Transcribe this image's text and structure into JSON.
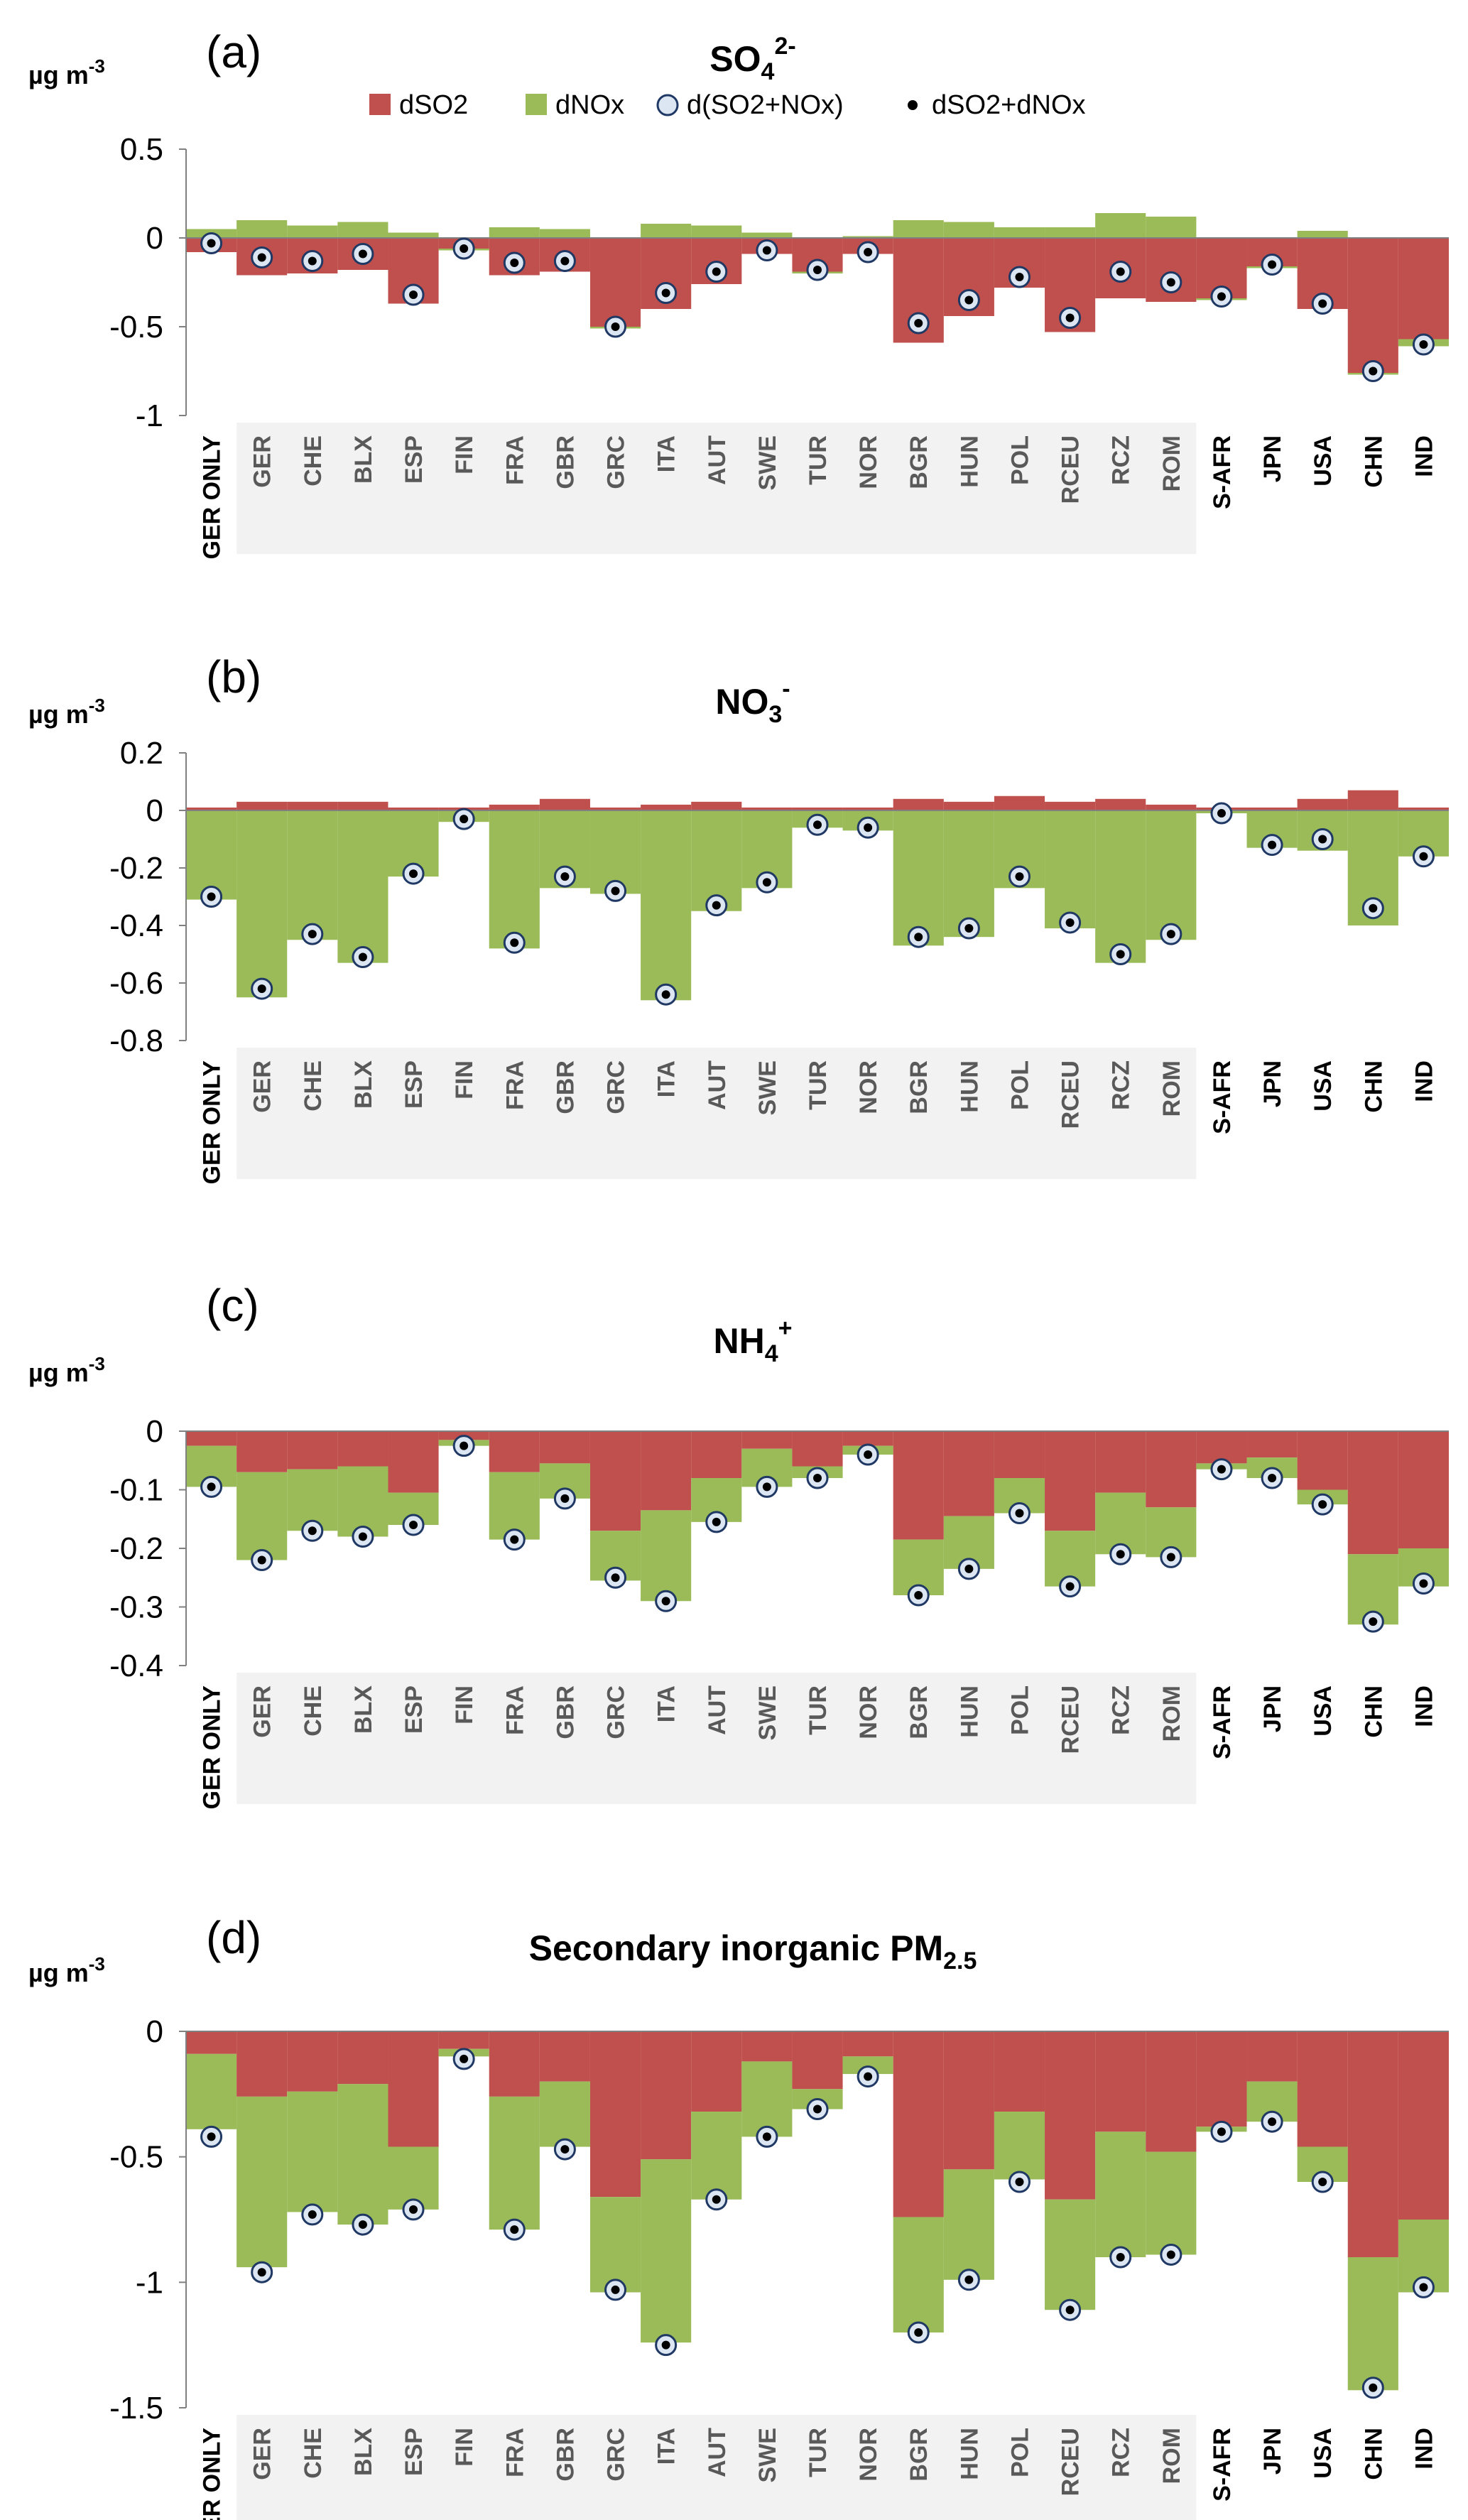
{
  "colors": {
    "dSO2": "#C0504D",
    "dNOx": "#9BBB59",
    "d_combined_fill": "#DCE6F2",
    "d_combined_stroke": "#1F3864",
    "d_sum_dot": "#000000",
    "eu_shading": "#F2F2F2",
    "axis": "#808080"
  },
  "legend": {
    "items": [
      {
        "label": "dSO2",
        "marker": "square",
        "color_key": "dSO2"
      },
      {
        "label": "dNOx",
        "marker": "square",
        "color_key": "dNOx"
      },
      {
        "label": "d(SO2+NOx)",
        "marker": "circle",
        "color_key": "d_combined_fill"
      },
      {
        "label": "dSO2+dNOx",
        "marker": "dot",
        "color_key": "d_sum_dot"
      }
    ]
  },
  "chart_data": [
    {
      "type": "bar",
      "panel": "(a)",
      "title": "SO",
      "title_sub": "4",
      "title_sup": "2-",
      "unit": "µg  m",
      "unit_sup": "-3",
      "ylim": [
        -1,
        0.5
      ],
      "yticks": [
        "0.5",
        "0",
        "-0.5",
        "-1"
      ],
      "yticks_values": [
        0.5,
        0,
        -0.5,
        -1
      ],
      "categories": [
        "GER ONLY",
        "GER",
        "CHE",
        "BLX",
        "ESP",
        "FIN",
        "FRA",
        "GBR",
        "GRC",
        "ITA",
        "AUT",
        "SWE",
        "TUR",
        "NOR",
        "BGR",
        "HUN",
        "POL",
        "RCEU",
        "RCZ",
        "ROM",
        "S-AFR",
        "JPN",
        "USA",
        "CHN",
        "IND"
      ],
      "series": [
        {
          "name": "dSO2",
          "values": [
            -0.08,
            -0.21,
            -0.2,
            -0.18,
            -0.37,
            -0.06,
            -0.21,
            -0.19,
            -0.5,
            -0.4,
            -0.26,
            -0.09,
            -0.19,
            -0.09,
            -0.59,
            -0.44,
            -0.28,
            -0.53,
            -0.34,
            -0.36,
            -0.34,
            -0.16,
            -0.4,
            -0.76,
            -0.57
          ]
        },
        {
          "name": "dNOx",
          "values": [
            0.05,
            0.1,
            0.07,
            0.09,
            0.03,
            -0.01,
            0.06,
            0.05,
            -0.01,
            0.08,
            0.07,
            0.03,
            -0.01,
            0.01,
            0.1,
            0.09,
            0.06,
            0.06,
            0.14,
            0.12,
            -0.01,
            -0.01,
            0.04,
            -0.01,
            -0.04
          ]
        },
        {
          "name": "d(SO2+NOx)",
          "values": [
            -0.03,
            -0.11,
            -0.13,
            -0.09,
            -0.32,
            -0.06,
            -0.14,
            -0.13,
            -0.5,
            -0.31,
            -0.19,
            -0.07,
            -0.18,
            -0.08,
            -0.48,
            -0.35,
            -0.22,
            -0.45,
            -0.19,
            -0.25,
            -0.33,
            -0.15,
            -0.37,
            -0.75,
            -0.6
          ]
        },
        {
          "name": "dSO2+dNOx",
          "values": [
            -0.03,
            -0.11,
            -0.13,
            -0.09,
            -0.32,
            -0.06,
            -0.14,
            -0.13,
            -0.5,
            -0.31,
            -0.19,
            -0.07,
            -0.18,
            -0.08,
            -0.48,
            -0.35,
            -0.22,
            -0.45,
            -0.19,
            -0.25,
            -0.33,
            -0.15,
            -0.37,
            -0.75,
            -0.6
          ]
        }
      ]
    },
    {
      "type": "bar",
      "panel": "(b)",
      "title": "NO",
      "title_sub": "3",
      "title_sup": "-",
      "unit": "µg  m",
      "unit_sup": "-3",
      "ylim": [
        -0.8,
        0.2
      ],
      "yticks": [
        "0.2",
        "0",
        "-0.2",
        "-0.4",
        "-0.6",
        "-0.8"
      ],
      "yticks_values": [
        0.2,
        0,
        -0.2,
        -0.4,
        -0.6,
        -0.8
      ],
      "categories": [
        "GER ONLY",
        "GER",
        "CHE",
        "BLX",
        "ESP",
        "FIN",
        "FRA",
        "GBR",
        "GRC",
        "ITA",
        "AUT",
        "SWE",
        "TUR",
        "NOR",
        "BGR",
        "HUN",
        "POL",
        "RCEU",
        "RCZ",
        "ROM",
        "S-AFR",
        "JPN",
        "USA",
        "CHN",
        "IND"
      ],
      "series": [
        {
          "name": "dSO2",
          "values": [
            0.01,
            0.03,
            0.03,
            0.03,
            0.01,
            0.01,
            0.02,
            0.04,
            0.01,
            0.02,
            0.03,
            0.01,
            0.01,
            0.01,
            0.04,
            0.03,
            0.05,
            0.03,
            0.04,
            0.02,
            0.01,
            0.01,
            0.04,
            0.07,
            0.01
          ]
        },
        {
          "name": "dNOx",
          "values": [
            -0.31,
            -0.65,
            -0.45,
            -0.53,
            -0.23,
            -0.04,
            -0.48,
            -0.27,
            -0.29,
            -0.66,
            -0.35,
            -0.27,
            -0.06,
            -0.07,
            -0.47,
            -0.44,
            -0.27,
            -0.41,
            -0.53,
            -0.45,
            -0.01,
            -0.13,
            -0.14,
            -0.4,
            -0.16
          ]
        },
        {
          "name": "d(SO2+NOx)",
          "values": [
            -0.3,
            -0.62,
            -0.43,
            -0.51,
            -0.22,
            -0.03,
            -0.46,
            -0.23,
            -0.28,
            -0.64,
            -0.33,
            -0.25,
            -0.05,
            -0.06,
            -0.44,
            -0.41,
            -0.23,
            -0.39,
            -0.5,
            -0.43,
            -0.01,
            -0.12,
            -0.1,
            -0.34,
            -0.16
          ]
        },
        {
          "name": "dSO2+dNOx",
          "values": [
            -0.3,
            -0.62,
            -0.43,
            -0.51,
            -0.22,
            -0.03,
            -0.46,
            -0.23,
            -0.28,
            -0.64,
            -0.33,
            -0.25,
            -0.05,
            -0.06,
            -0.44,
            -0.41,
            -0.23,
            -0.39,
            -0.5,
            -0.43,
            -0.01,
            -0.12,
            -0.1,
            -0.34,
            -0.16
          ]
        }
      ]
    },
    {
      "type": "bar",
      "panel": "(c)",
      "title": "NH",
      "title_sub": "4",
      "title_sup": "+",
      "unit": "µg  m",
      "unit_sup": "-3",
      "ylim": [
        -0.4,
        0
      ],
      "yticks": [
        "0",
        "-0.1",
        "-0.2",
        "-0.3",
        "-0.4"
      ],
      "yticks_values": [
        0,
        -0.1,
        -0.2,
        -0.3,
        -0.4
      ],
      "categories": [
        "GER ONLY",
        "GER",
        "CHE",
        "BLX",
        "ESP",
        "FIN",
        "FRA",
        "GBR",
        "GRC",
        "ITA",
        "AUT",
        "SWE",
        "TUR",
        "NOR",
        "BGR",
        "HUN",
        "POL",
        "RCEU",
        "RCZ",
        "ROM",
        "S-AFR",
        "JPN",
        "USA",
        "CHN",
        "IND"
      ],
      "series": [
        {
          "name": "dSO2",
          "values": [
            -0.025,
            -0.07,
            -0.065,
            -0.06,
            -0.105,
            -0.015,
            -0.07,
            -0.055,
            -0.17,
            -0.135,
            -0.08,
            -0.03,
            -0.06,
            -0.025,
            -0.185,
            -0.145,
            -0.08,
            -0.17,
            -0.105,
            -0.13,
            -0.055,
            -0.045,
            -0.1,
            -0.21,
            -0.2
          ]
        },
        {
          "name": "dNOx",
          "values": [
            -0.07,
            -0.15,
            -0.105,
            -0.12,
            -0.055,
            -0.01,
            -0.115,
            -0.06,
            -0.085,
            -0.155,
            -0.075,
            -0.065,
            -0.02,
            -0.015,
            -0.095,
            -0.09,
            -0.06,
            -0.095,
            -0.105,
            -0.085,
            -0.01,
            -0.035,
            -0.025,
            -0.12,
            -0.065
          ]
        },
        {
          "name": "d(SO2+NOx)",
          "values": [
            -0.095,
            -0.22,
            -0.17,
            -0.18,
            -0.16,
            -0.025,
            -0.185,
            -0.115,
            -0.25,
            -0.29,
            -0.155,
            -0.095,
            -0.08,
            -0.04,
            -0.28,
            -0.235,
            -0.14,
            -0.265,
            -0.21,
            -0.215,
            -0.065,
            -0.08,
            -0.125,
            -0.325,
            -0.26
          ]
        },
        {
          "name": "dSO2+dNOx",
          "values": [
            -0.095,
            -0.22,
            -0.17,
            -0.18,
            -0.16,
            -0.025,
            -0.185,
            -0.115,
            -0.25,
            -0.29,
            -0.155,
            -0.095,
            -0.08,
            -0.04,
            -0.28,
            -0.235,
            -0.14,
            -0.265,
            -0.21,
            -0.215,
            -0.065,
            -0.08,
            -0.125,
            -0.325,
            -0.26
          ]
        }
      ]
    },
    {
      "type": "bar",
      "panel": "(d)",
      "title": "Secondary inorganic PM",
      "title_sub": "2.5",
      "title_sup": "",
      "unit": "µg  m",
      "unit_sup": "-3",
      "ylim": [
        -1.5,
        0
      ],
      "yticks": [
        "0",
        "-0.5",
        "-1",
        "-1.5"
      ],
      "yticks_values": [
        0,
        -0.5,
        -1,
        -1.5
      ],
      "categories": [
        "GER ONLY",
        "GER",
        "CHE",
        "BLX",
        "ESP",
        "FIN",
        "FRA",
        "GBR",
        "GRC",
        "ITA",
        "AUT",
        "SWE",
        "TUR",
        "NOR",
        "BGR",
        "HUN",
        "POL",
        "RCEU",
        "RCZ",
        "ROM",
        "S-AFR",
        "JPN",
        "USA",
        "CHN",
        "IND"
      ],
      "series": [
        {
          "name": "dSO2",
          "values": [
            -0.09,
            -0.26,
            -0.24,
            -0.21,
            -0.46,
            -0.07,
            -0.26,
            -0.2,
            -0.66,
            -0.51,
            -0.32,
            -0.12,
            -0.23,
            -0.1,
            -0.74,
            -0.55,
            -0.32,
            -0.67,
            -0.4,
            -0.48,
            -0.38,
            -0.2,
            -0.46,
            -0.9,
            -0.75
          ]
        },
        {
          "name": "dNOx",
          "values": [
            -0.3,
            -0.68,
            -0.48,
            -0.56,
            -0.25,
            -0.03,
            -0.53,
            -0.26,
            -0.38,
            -0.73,
            -0.35,
            -0.3,
            -0.08,
            -0.07,
            -0.46,
            -0.44,
            -0.27,
            -0.44,
            -0.5,
            -0.41,
            -0.02,
            -0.16,
            -0.14,
            -0.53,
            -0.29
          ]
        },
        {
          "name": "d(SO2+NOx)",
          "values": [
            -0.42,
            -0.96,
            -0.73,
            -0.77,
            -0.71,
            -0.11,
            -0.79,
            -0.47,
            -1.03,
            -1.25,
            -0.67,
            -0.42,
            -0.31,
            -0.18,
            -1.2,
            -0.99,
            -0.6,
            -1.11,
            -0.9,
            -0.89,
            -0.4,
            -0.36,
            -0.6,
            -1.42,
            -1.02
          ]
        },
        {
          "name": "dSO2+dNOx",
          "values": [
            -0.42,
            -0.96,
            -0.73,
            -0.77,
            -0.71,
            -0.11,
            -0.79,
            -0.47,
            -1.03,
            -1.25,
            -0.67,
            -0.42,
            -0.31,
            -0.18,
            -1.2,
            -0.99,
            -0.6,
            -1.11,
            -0.9,
            -0.89,
            -0.4,
            -0.36,
            -0.6,
            -1.42,
            -1.02
          ]
        }
      ]
    }
  ]
}
